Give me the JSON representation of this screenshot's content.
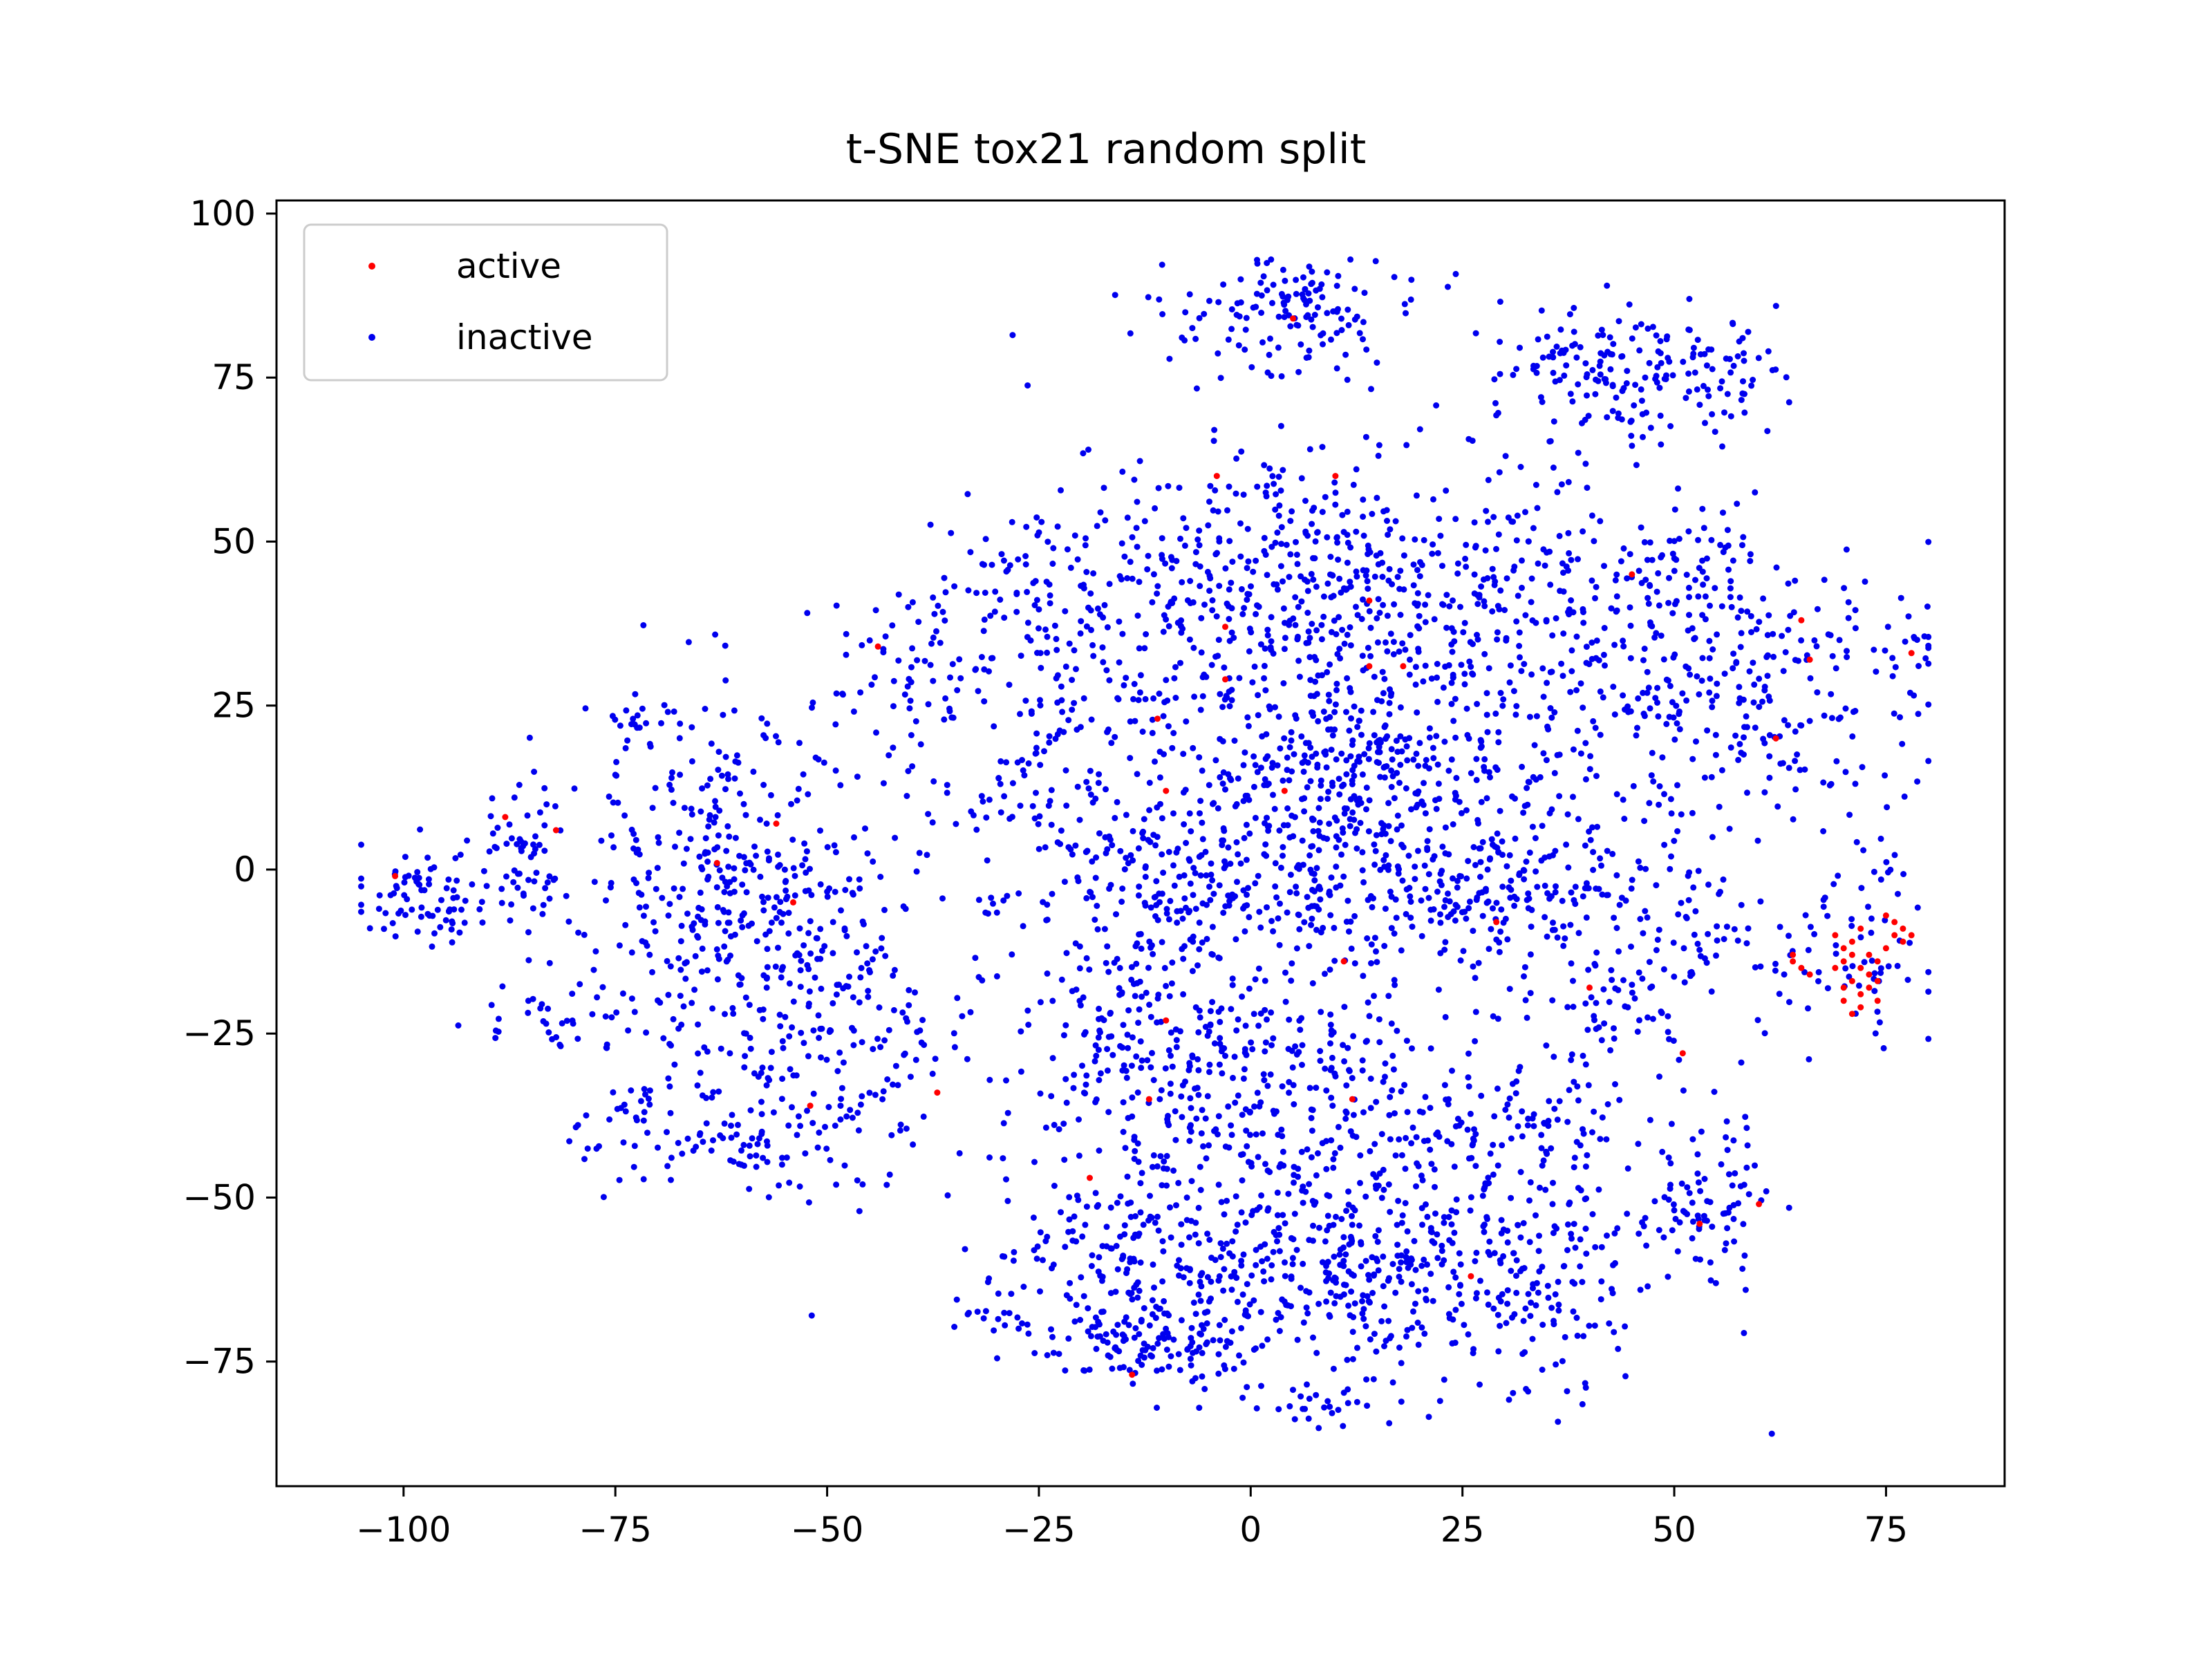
{
  "chart_data": {
    "type": "scatter",
    "title": "t-SNE tox21 random split",
    "xlabel": "",
    "ylabel": "",
    "xlim": [
      -115,
      89
    ],
    "ylim": [
      -94,
      102
    ],
    "xticks": [
      -100,
      -75,
      -50,
      -25,
      0,
      25,
      50,
      75
    ],
    "yticks": [
      -75,
      -50,
      -25,
      0,
      25,
      50,
      75,
      100
    ],
    "xtick_labels": [
      "−100",
      "−75",
      "−50",
      "−25",
      "0",
      "25",
      "50",
      "75"
    ],
    "ytick_labels": [
      "−75",
      "−50",
      "−25",
      "0",
      "25",
      "50",
      "75",
      "100"
    ],
    "grid": false,
    "legend_position": "top-left",
    "series": [
      {
        "name": "active",
        "color": "#ff0000",
        "points": [
          [
            -101,
            -1
          ],
          [
            -88,
            8
          ],
          [
            -82,
            6
          ],
          [
            -63,
            1
          ],
          [
            -56,
            7
          ],
          [
            -54,
            -5
          ],
          [
            -52,
            -36
          ],
          [
            -37,
            -34
          ],
          [
            -44,
            34
          ],
          [
            -10,
            12
          ],
          [
            -11,
            23
          ],
          [
            -10,
            -23
          ],
          [
            -12,
            -35
          ],
          [
            -14,
            -77
          ],
          [
            -19,
            -47
          ],
          [
            -3,
            37
          ],
          [
            -3,
            29
          ],
          [
            -4,
            60
          ],
          [
            4,
            12
          ],
          [
            5,
            84
          ],
          [
            10,
            60
          ],
          [
            11,
            -14
          ],
          [
            12,
            -35
          ],
          [
            14,
            41
          ],
          [
            14,
            31
          ],
          [
            18,
            31
          ],
          [
            26,
            -62
          ],
          [
            29,
            -8
          ],
          [
            40,
            -18
          ],
          [
            45,
            45
          ],
          [
            53,
            -54
          ],
          [
            51,
            -28
          ],
          [
            60,
            -51
          ],
          [
            66,
            32
          ],
          [
            78,
            33
          ],
          [
            62,
            20
          ],
          [
            65,
            38
          ],
          [
            64,
            -14
          ],
          [
            65,
            -15
          ],
          [
            66,
            -16
          ],
          [
            64,
            -13
          ],
          [
            69,
            -10
          ],
          [
            70,
            -12
          ],
          [
            71,
            -11
          ],
          [
            72,
            -9
          ],
          [
            70,
            -14
          ],
          [
            73,
            -13
          ],
          [
            72,
            -15
          ],
          [
            71,
            -17
          ],
          [
            73,
            -18
          ],
          [
            74,
            -20
          ],
          [
            72,
            -21
          ],
          [
            71,
            -22
          ],
          [
            70,
            -20
          ],
          [
            73,
            -16
          ],
          [
            74,
            -14
          ],
          [
            75,
            -12
          ],
          [
            76,
            -10
          ],
          [
            77,
            -9
          ],
          [
            76,
            -8
          ],
          [
            75,
            -7
          ],
          [
            77,
            -11
          ],
          [
            78,
            -10
          ],
          [
            74,
            -17
          ],
          [
            72,
            -19
          ],
          [
            70,
            -18
          ],
          [
            69,
            -15
          ],
          [
            71,
            -13
          ]
        ]
      },
      {
        "name": "inactive",
        "color": "#0000ee",
        "clusters": [
          {
            "cx": -98,
            "cy": -4,
            "sx": 4,
            "sy": 4,
            "n": 80
          },
          {
            "cx": -86,
            "cy": 3,
            "sx": 3,
            "sy": 6,
            "n": 55
          },
          {
            "cx": -62,
            "cy": -2,
            "sx": 9,
            "sy": 14,
            "n": 320
          },
          {
            "cx": -50,
            "cy": -22,
            "sx": 9,
            "sy": 14,
            "n": 240
          },
          {
            "cx": -64,
            "cy": -40,
            "sx": 8,
            "sy": 4,
            "n": 90
          },
          {
            "cx": -82,
            "cy": -22,
            "sx": 5,
            "sy": 3,
            "n": 35
          },
          {
            "cx": -72,
            "cy": 22,
            "sx": 3,
            "sy": 2,
            "n": 22
          },
          {
            "cx": -40,
            "cy": 30,
            "sx": 6,
            "sy": 8,
            "n": 75
          },
          {
            "cx": -27,
            "cy": 45,
            "sx": 5,
            "sy": 5,
            "n": 45
          },
          {
            "cx": -20,
            "cy": 30,
            "sx": 8,
            "sy": 10,
            "n": 130
          },
          {
            "cx": -27,
            "cy": 10,
            "sx": 5,
            "sy": 6,
            "n": 45
          },
          {
            "cx": -12,
            "cy": 5,
            "sx": 6,
            "sy": 8,
            "n": 110
          },
          {
            "cx": -3,
            "cy": 42,
            "sx": 10,
            "sy": 10,
            "n": 190
          },
          {
            "cx": 5,
            "cy": 85,
            "sx": 8,
            "sy": 4,
            "n": 140
          },
          {
            "cx": 8,
            "cy": 45,
            "sx": 10,
            "sy": 12,
            "n": 200
          },
          {
            "cx": 8,
            "cy": 12,
            "sx": 8,
            "sy": 8,
            "n": 220
          },
          {
            "cx": 20,
            "cy": 20,
            "sx": 12,
            "sy": 16,
            "n": 280
          },
          {
            "cx": 35,
            "cy": 40,
            "sx": 10,
            "sy": 12,
            "n": 220
          },
          {
            "cx": 35,
            "cy": 0,
            "sx": 12,
            "sy": 10,
            "n": 180
          },
          {
            "cx": 58,
            "cy": 30,
            "sx": 10,
            "sy": 10,
            "n": 220
          },
          {
            "cx": 52,
            "cy": 48,
            "sx": 5,
            "sy": 4,
            "n": 45
          },
          {
            "cx": 37,
            "cy": 77,
            "sx": 4,
            "sy": 4,
            "n": 65
          },
          {
            "cx": 50,
            "cy": 75,
            "sx": 6,
            "sy": 5,
            "n": 120
          },
          {
            "cx": 72,
            "cy": 3,
            "sx": 4,
            "sy": 7,
            "n": 30
          },
          {
            "cx": 78,
            "cy": 34,
            "sx": 2,
            "sy": 2,
            "n": 15
          },
          {
            "cx": 70,
            "cy": -15,
            "sx": 5,
            "sy": 5,
            "n": 55
          },
          {
            "cx": 55,
            "cy": -50,
            "sx": 4,
            "sy": 5,
            "n": 75
          },
          {
            "cx": 45,
            "cy": -20,
            "sx": 5,
            "sy": 5,
            "n": 55
          },
          {
            "cx": 55,
            "cy": -7,
            "sx": 3,
            "sy": 4,
            "n": 22
          },
          {
            "cx": -5,
            "cy": -30,
            "sx": 10,
            "sy": 10,
            "n": 200
          },
          {
            "cx": -15,
            "cy": -25,
            "sx": 6,
            "sy": 10,
            "n": 110
          },
          {
            "cx": 10,
            "cy": -40,
            "sx": 10,
            "sy": 12,
            "n": 200
          },
          {
            "cx": 30,
            "cy": -40,
            "sx": 12,
            "sy": 10,
            "n": 200
          },
          {
            "cx": -17,
            "cy": -58,
            "sx": 8,
            "sy": 6,
            "n": 120
          },
          {
            "cx": -13,
            "cy": -72,
            "sx": 6,
            "sy": 3,
            "n": 120
          },
          {
            "cx": 0,
            "cy": -63,
            "sx": 8,
            "sy": 8,
            "n": 160
          },
          {
            "cx": 15,
            "cy": -60,
            "sx": 5,
            "sy": 6,
            "n": 80
          },
          {
            "cx": 30,
            "cy": -65,
            "sx": 10,
            "sy": 8,
            "n": 200
          },
          {
            "cx": 10,
            "cy": -82,
            "sx": 4,
            "sy": 2,
            "n": 22
          },
          {
            "cx": -30,
            "cy": -68,
            "sx": 2,
            "sy": 2,
            "n": 15
          },
          {
            "cx": -30,
            "cy": -6,
            "sx": 1.5,
            "sy": 1.5,
            "n": 8
          },
          {
            "cx": 10,
            "cy": -5,
            "sx": 16,
            "sy": 5,
            "n": 220
          }
        ]
      }
    ]
  }
}
